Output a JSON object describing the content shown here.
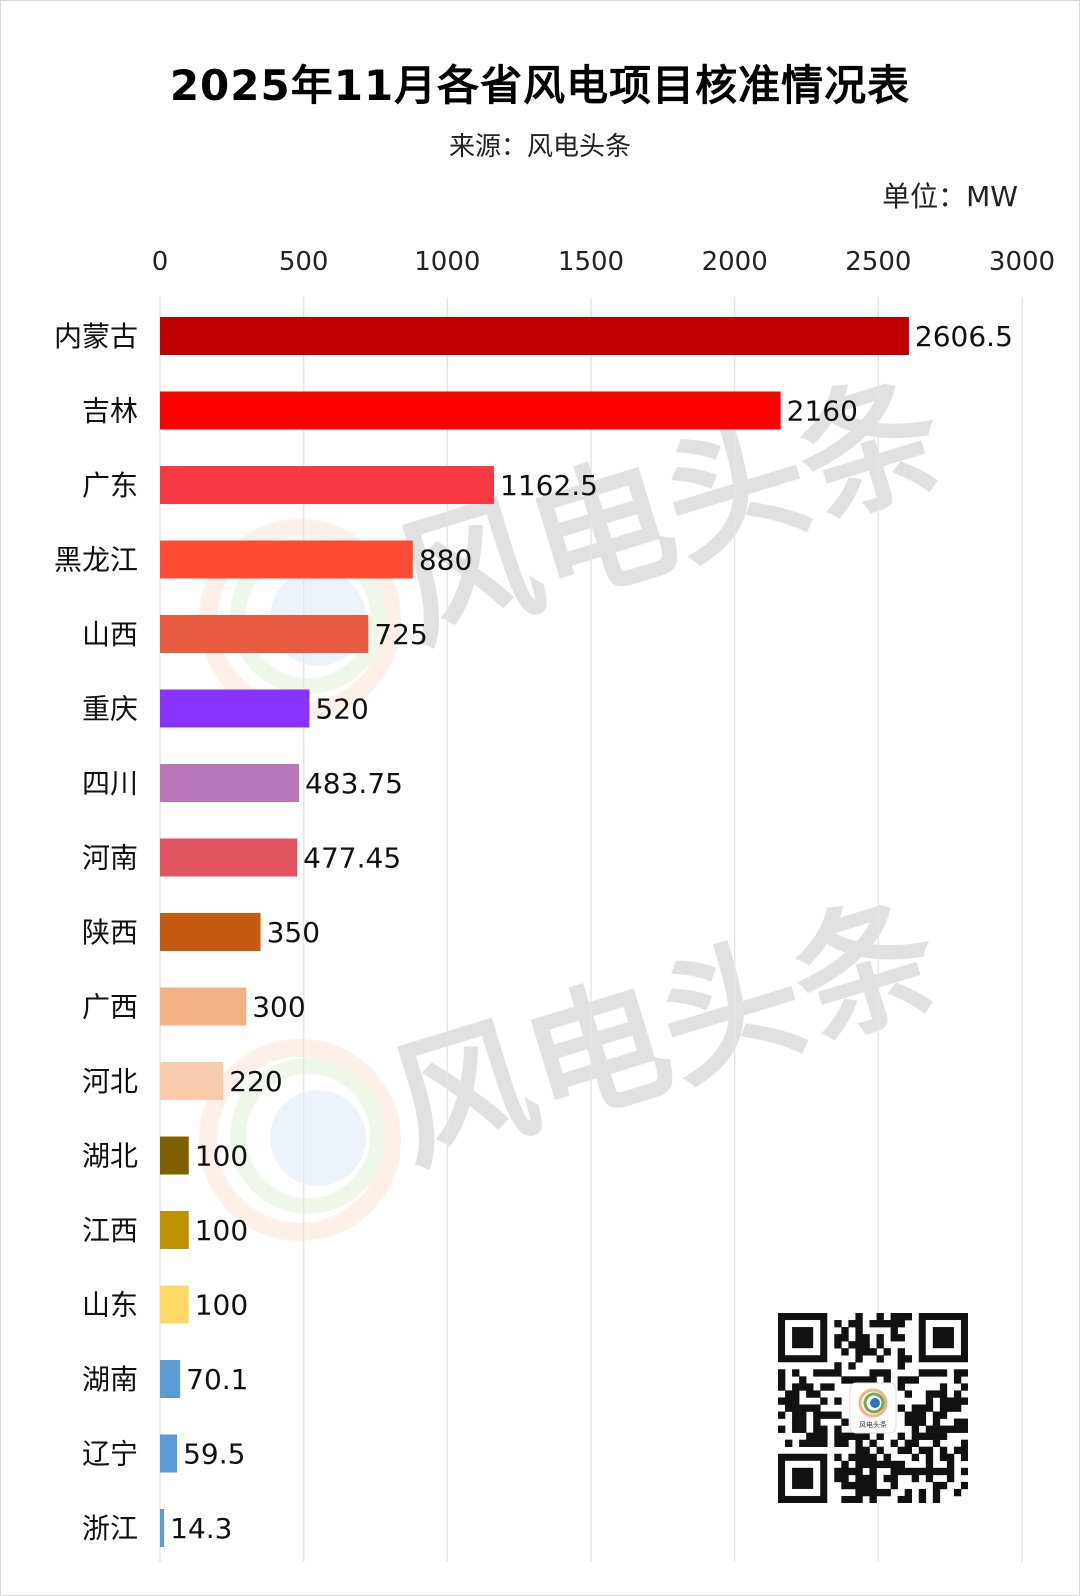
{
  "header": {
    "title": "2025年11月各省风电项目核准情况表",
    "source": "来源：风电头条",
    "unit": "单位：MW"
  },
  "watermark": {
    "text": "风电头条",
    "colors": [
      "#f4b183",
      "#a9d18e",
      "#9dc3e6"
    ]
  },
  "qr_logo_text": "风电头条",
  "chart_data": {
    "type": "bar",
    "orientation": "horizontal",
    "title": "2025年11月各省风电项目核准情况表",
    "subtitle": "来源：风电头条",
    "unit": "单位：MW",
    "xlim": [
      0,
      3000
    ],
    "xticks": [
      0,
      500,
      1000,
      1500,
      2000,
      2500,
      3000
    ],
    "tick_labels": [
      "0",
      "500",
      "1000",
      "1500",
      "2000",
      "2500",
      "3000"
    ],
    "axis_position": "top",
    "grid": true,
    "categories": [
      "内蒙古",
      "吉林",
      "广东",
      "黑龙江",
      "山西",
      "重庆",
      "四川",
      "河南",
      "陕西",
      "广西",
      "河北",
      "湖北",
      "江西",
      "山东",
      "湖南",
      "辽宁",
      "浙江"
    ],
    "values": [
      2606.5,
      2160,
      1162.5,
      880,
      725,
      520,
      483.75,
      477.45,
      350,
      300,
      220,
      100,
      100,
      100,
      70.1,
      59.5,
      14.3
    ],
    "value_labels": [
      "2606.5",
      "2160",
      "1162.5",
      "880",
      "725",
      "520",
      "483.75",
      "477.45",
      "350",
      "300",
      "220",
      "100",
      "100",
      "100",
      "70.1",
      "59.5",
      "14.3"
    ],
    "colors": [
      "#c00000",
      "#ff0000",
      "#f83a44",
      "#fd4b34",
      "#ea5c42",
      "#8833ff",
      "#b976b8",
      "#e05461",
      "#c55a11",
      "#f4b183",
      "#f8cbad",
      "#7f6000",
      "#bf9000",
      "#ffd966",
      "#5b9bd5",
      "#5b9bd5",
      "#5b9bd5"
    ]
  }
}
